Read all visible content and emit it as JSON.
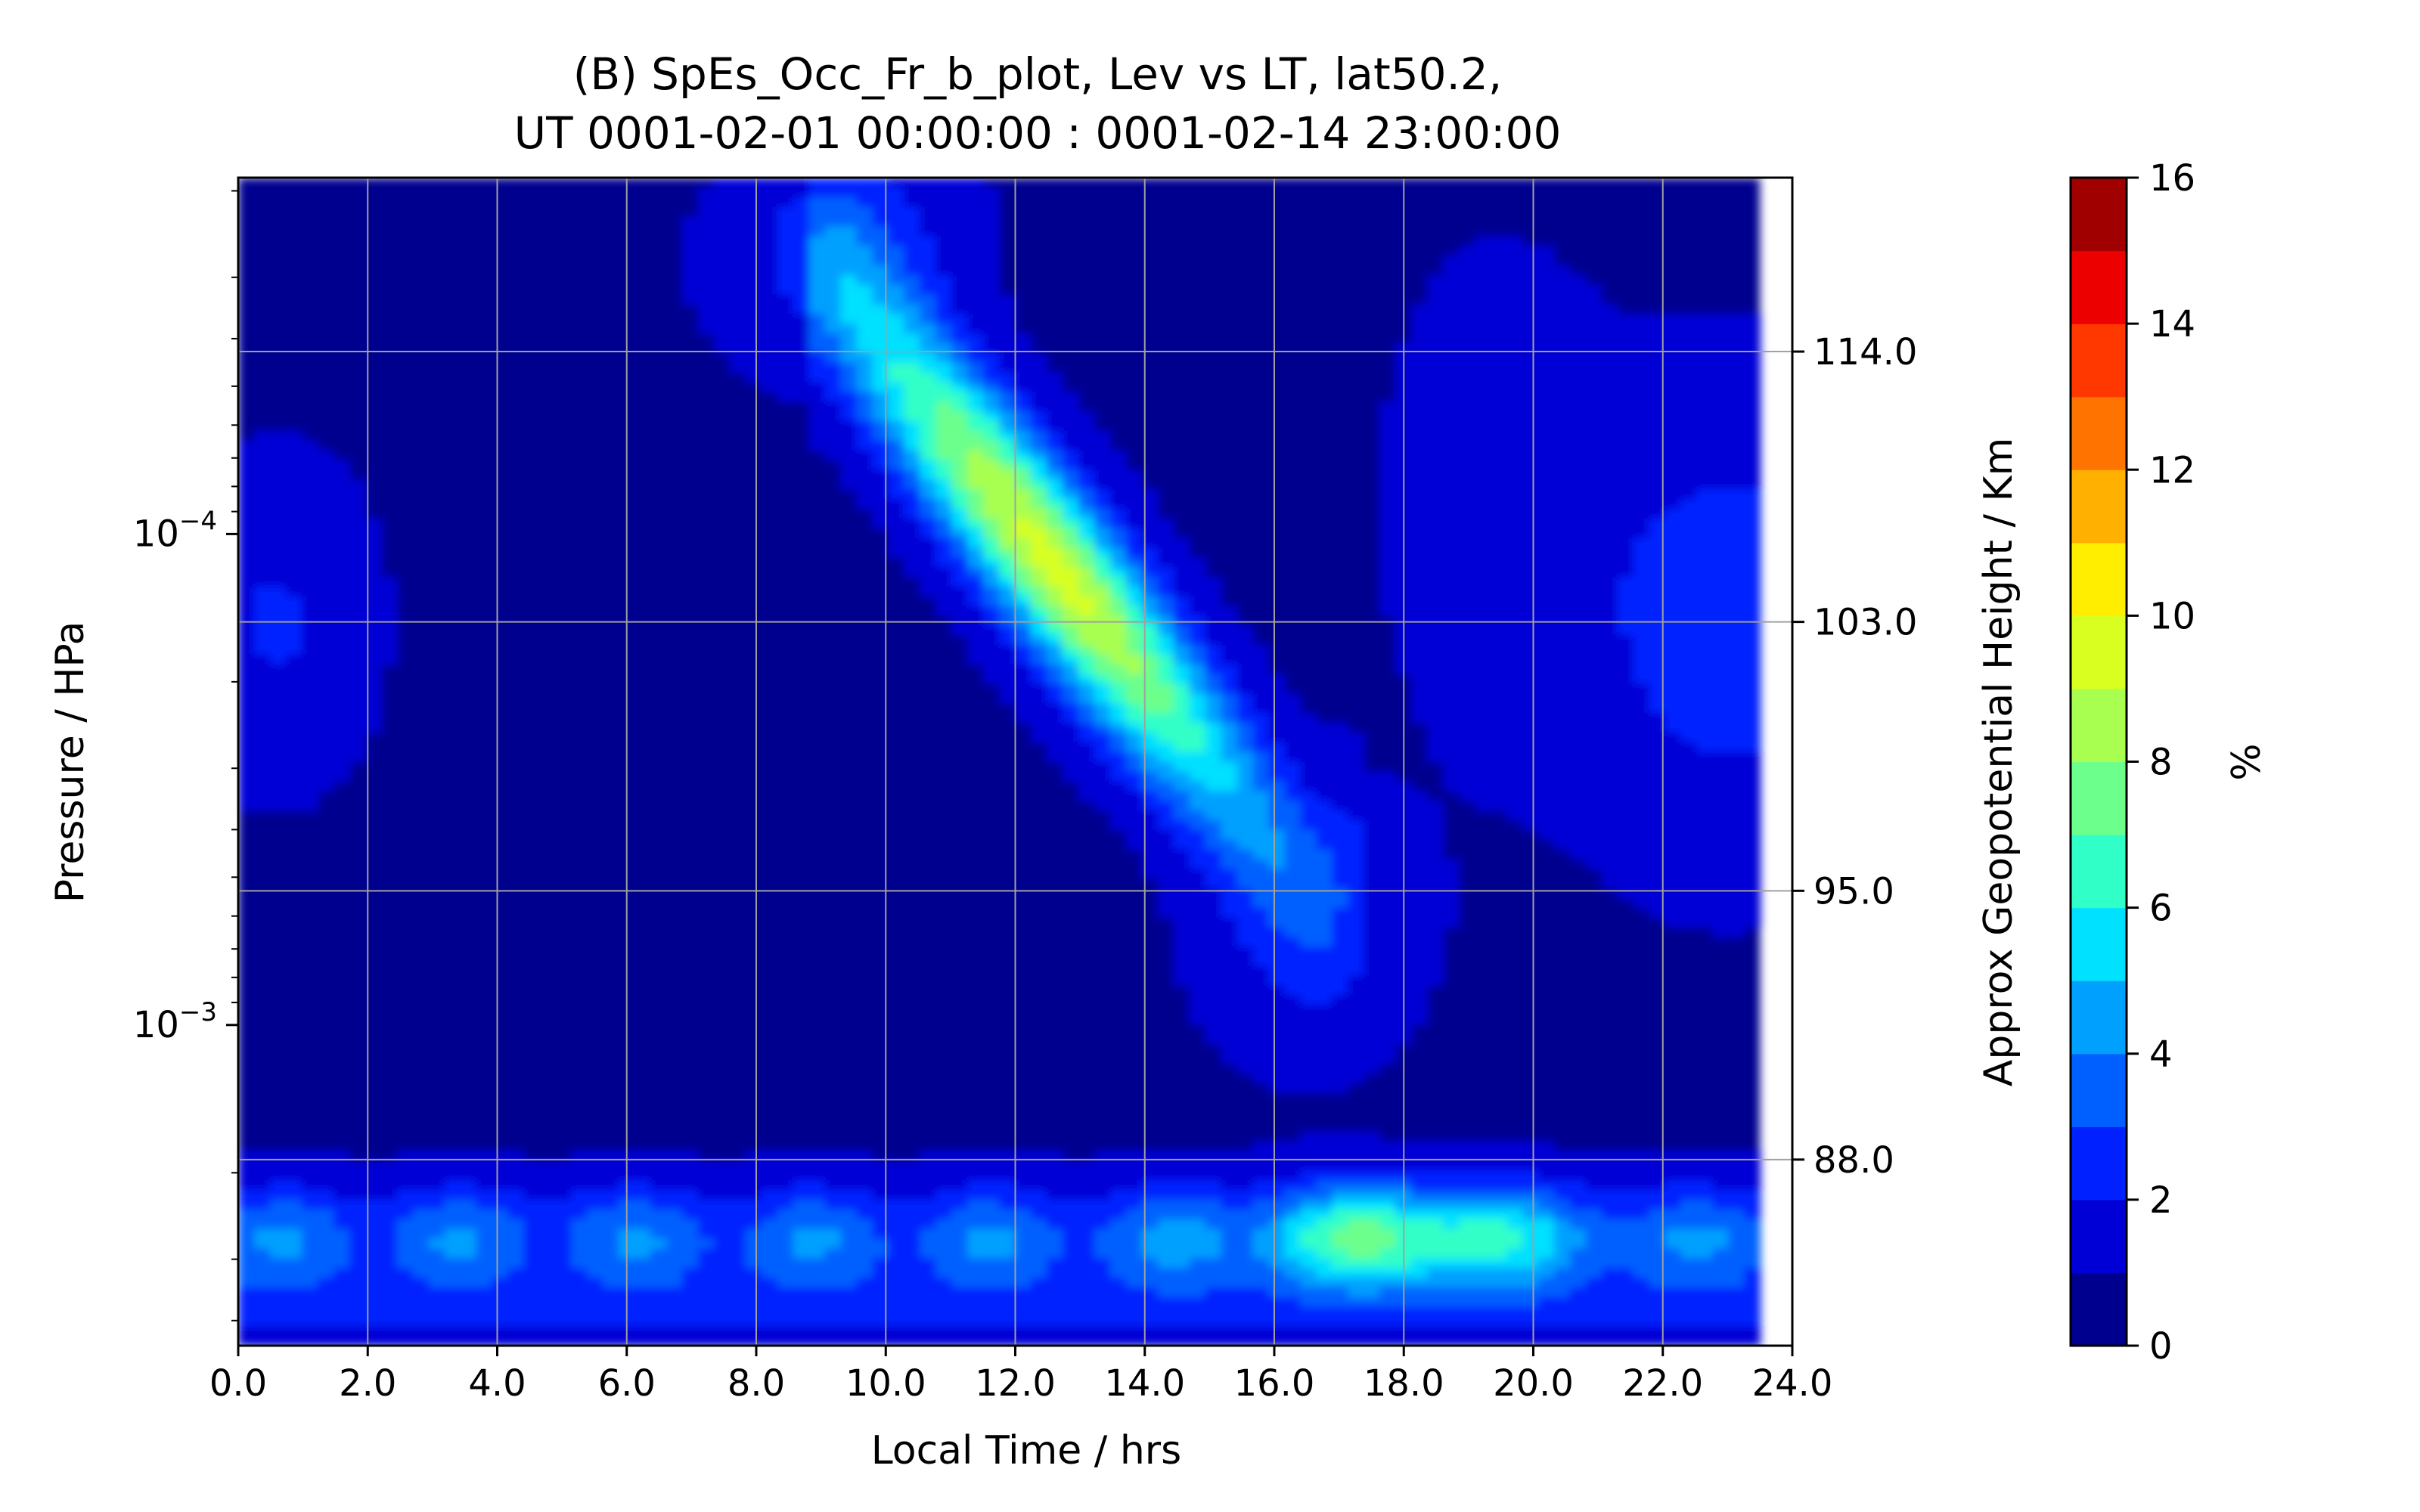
{
  "chart_data": {
    "type": "heatmap",
    "title_line1": "(B) SpEs_Occ_Fr_b_plot, Lev vs LT, lat50.2,",
    "title_line2": "UT 0001-02-01 00:00:00 : 0001-02-14 23:00:00",
    "xlabel": "Local Time / hrs",
    "ylabel": "Pressure / HPa",
    "ylabel_right": "Approx Geopotential Height / Km",
    "colorbar_label": "%",
    "xlim": [
      0,
      24
    ],
    "x_ticks": [
      {
        "value": 0,
        "label": "0.0"
      },
      {
        "value": 2,
        "label": "2.0"
      },
      {
        "value": 4,
        "label": "4.0"
      },
      {
        "value": 6,
        "label": "6.0"
      },
      {
        "value": 8,
        "label": "8.0"
      },
      {
        "value": 10,
        "label": "10.0"
      },
      {
        "value": 12,
        "label": "12.0"
      },
      {
        "value": 14,
        "label": "14.0"
      },
      {
        "value": 16,
        "label": "16.0"
      },
      {
        "value": 18,
        "label": "18.0"
      },
      {
        "value": 20,
        "label": "20.0"
      },
      {
        "value": 22,
        "label": "22.0"
      },
      {
        "value": 24,
        "label": "24.0"
      }
    ],
    "y_scale": "log",
    "ylim": [
      0.0045,
      1.88e-05
    ],
    "y_ticks": [
      {
        "value": 0.0001,
        "base": "10",
        "exp": "−4"
      },
      {
        "value": 0.001,
        "base": "10",
        "exp": "−3"
      }
    ],
    "right_ticks": [
      {
        "label": "114.0",
        "pressure": 4.25e-05
      },
      {
        "label": "103.0",
        "pressure": 0.000151
      },
      {
        "label": "95.0",
        "pressure": 0.000533
      },
      {
        "label": "88.0",
        "pressure": 0.00188
      }
    ],
    "grid": true,
    "data_x_max": 23.5,
    "colorbar": {
      "levels": [
        0,
        1,
        2,
        3,
        4,
        5,
        6,
        7,
        8,
        9,
        10,
        11,
        12,
        13,
        14,
        15,
        16
      ],
      "tick_labels": [
        {
          "value": 0,
          "label": "0"
        },
        {
          "value": 2,
          "label": "2"
        },
        {
          "value": 4,
          "label": "4"
        },
        {
          "value": 6,
          "label": "6"
        },
        {
          "value": 8,
          "label": "8"
        },
        {
          "value": 10,
          "label": "10"
        },
        {
          "value": 12,
          "label": "12"
        },
        {
          "value": 14,
          "label": "14"
        },
        {
          "value": 16,
          "label": "16"
        }
      ],
      "colors": [
        "#00008f",
        "#0000d6",
        "#0020ff",
        "#0060ff",
        "#00a0ff",
        "#00e0ff",
        "#30ffc8",
        "#6cff8c",
        "#a8ff50",
        "#d8ff20",
        "#ffee00",
        "#ffb000",
        "#ff7400",
        "#ff3800",
        "#ec0000",
        "#a00000"
      ]
    },
    "features": [
      {
        "name": "diagonal band",
        "from_lt": 10,
        "from_p": 4.5e-05,
        "to_lt": 16,
        "to_p": 0.0004,
        "peak_percent": 8.5
      },
      {
        "name": "lower layer",
        "lt_range": [
          0,
          23.5
        ],
        "p": 0.0027,
        "peak_lt": 18,
        "peak_percent": 6.5
      }
    ]
  }
}
